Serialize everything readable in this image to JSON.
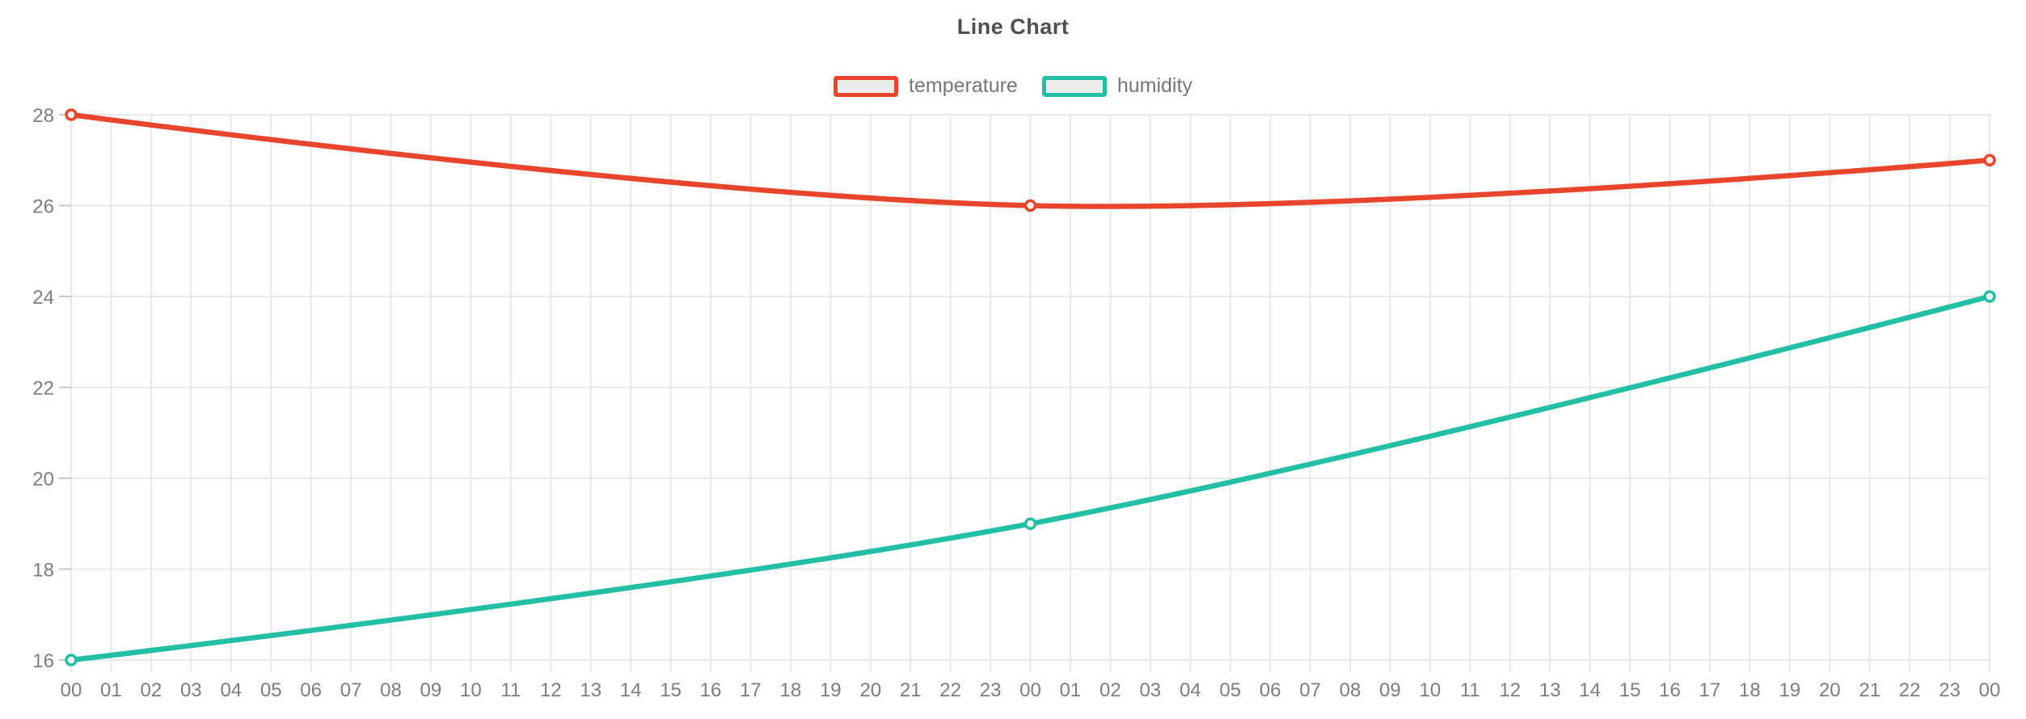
{
  "chart_data": {
    "type": "line",
    "title": "Line Chart",
    "legend_position": "top",
    "grid": true,
    "x_axis": {
      "labels": [
        "00",
        "01",
        "02",
        "03",
        "04",
        "05",
        "06",
        "07",
        "08",
        "09",
        "10",
        "11",
        "12",
        "13",
        "14",
        "15",
        "16",
        "17",
        "18",
        "19",
        "20",
        "21",
        "22",
        "23",
        "00",
        "01",
        "02",
        "03",
        "04",
        "05",
        "06",
        "07",
        "08",
        "09",
        "10",
        "11",
        "12",
        "13",
        "14",
        "15",
        "16",
        "17",
        "18",
        "19",
        "20",
        "21",
        "22",
        "23",
        "00"
      ]
    },
    "y_axis": {
      "ticks": [
        16,
        18,
        20,
        22,
        24,
        26,
        28
      ],
      "min": 16,
      "max": 28
    },
    "series": [
      {
        "name": "temperature",
        "color": "#e8452c",
        "points": [
          {
            "x_index": 0,
            "x_label": "00",
            "value": 28
          },
          {
            "x_index": 24,
            "x_label": "00",
            "value": 26
          },
          {
            "x_index": 48,
            "x_label": "00",
            "value": 27
          }
        ]
      },
      {
        "name": "humidity",
        "color": "#23bfa5",
        "points": [
          {
            "x_index": 0,
            "x_label": "00",
            "value": 16
          },
          {
            "x_index": 24,
            "x_label": "00",
            "value": 19
          },
          {
            "x_index": 48,
            "x_label": "00",
            "value": 24
          }
        ]
      }
    ]
  },
  "style": {
    "background_color": "#ffffff",
    "grid_color": "#e8e8e8",
    "y_tick_mark_color": "#c6c6c6",
    "axis_text_color": "#7d7d7d",
    "title_color": "#4f4f4f",
    "legend_text_color": "#757575",
    "legend_box_fill": "#ececec",
    "marker_fill": "#f1f1f1"
  }
}
